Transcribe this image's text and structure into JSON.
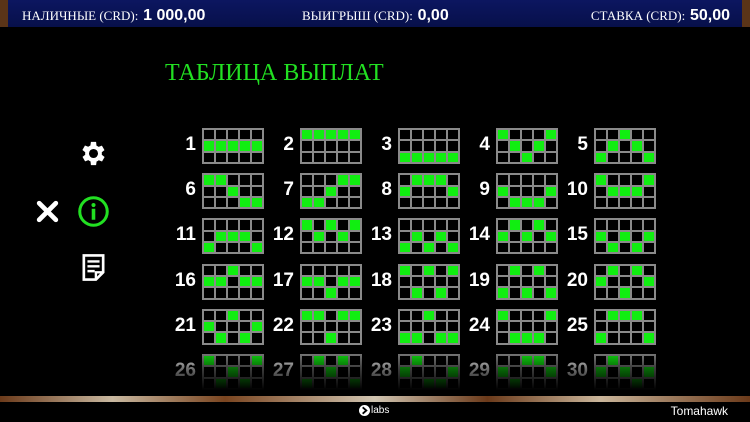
{
  "topbar": {
    "cash_label": "НАЛИЧНЫЕ (CRD):",
    "cash_value": "1 000,00",
    "win_label": "ВЫИГРЫШ (CRD):",
    "win_value": "0,00",
    "bet_label": "СТАВКА (CRD):",
    "bet_value": "50,00"
  },
  "title": "ТАБЛИЦА ВЫПЛАТ",
  "side_icons": [
    "gear-icon",
    "close-icon",
    "info-icon",
    "notes-icon"
  ],
  "colors": {
    "accent": "#22e022",
    "cell_on": "#11ee11",
    "topbar": "#0a1358"
  },
  "paylines": [
    {
      "n": "1",
      "rows": [
        1,
        1,
        1,
        1,
        1
      ]
    },
    {
      "n": "2",
      "rows": [
        0,
        0,
        0,
        0,
        0
      ]
    },
    {
      "n": "3",
      "rows": [
        2,
        2,
        2,
        2,
        2
      ]
    },
    {
      "n": "4",
      "rows": [
        0,
        1,
        2,
        1,
        0
      ]
    },
    {
      "n": "5",
      "rows": [
        2,
        1,
        0,
        1,
        2
      ]
    },
    {
      "n": "6",
      "rows": [
        0,
        0,
        1,
        2,
        2
      ]
    },
    {
      "n": "7",
      "rows": [
        2,
        2,
        1,
        0,
        0
      ]
    },
    {
      "n": "8",
      "rows": [
        1,
        0,
        0,
        0,
        1
      ]
    },
    {
      "n": "9",
      "rows": [
        1,
        2,
        2,
        2,
        1
      ]
    },
    {
      "n": "10",
      "rows": [
        0,
        1,
        1,
        1,
        0
      ]
    },
    {
      "n": "11",
      "rows": [
        2,
        1,
        1,
        1,
        2
      ]
    },
    {
      "n": "12",
      "rows": [
        0,
        1,
        0,
        1,
        0
      ]
    },
    {
      "n": "13",
      "rows": [
        2,
        1,
        2,
        1,
        2
      ]
    },
    {
      "n": "14",
      "rows": [
        1,
        0,
        1,
        0,
        1
      ]
    },
    {
      "n": "15",
      "rows": [
        1,
        2,
        1,
        2,
        1
      ]
    },
    {
      "n": "16",
      "rows": [
        1,
        1,
        0,
        1,
        1
      ]
    },
    {
      "n": "17",
      "rows": [
        1,
        1,
        2,
        1,
        1
      ]
    },
    {
      "n": "18",
      "rows": [
        0,
        2,
        0,
        2,
        0
      ]
    },
    {
      "n": "19",
      "rows": [
        2,
        0,
        2,
        0,
        2
      ]
    },
    {
      "n": "20",
      "rows": [
        1,
        0,
        2,
        0,
        1
      ]
    },
    {
      "n": "21",
      "rows": [
        1,
        2,
        0,
        2,
        1
      ]
    },
    {
      "n": "22",
      "rows": [
        0,
        0,
        2,
        0,
        0
      ]
    },
    {
      "n": "23",
      "rows": [
        2,
        2,
        0,
        2,
        2
      ]
    },
    {
      "n": "24",
      "rows": [
        0,
        2,
        2,
        2,
        0
      ]
    },
    {
      "n": "25",
      "rows": [
        2,
        0,
        0,
        0,
        2
      ]
    },
    {
      "n": "26",
      "rows": [
        0,
        2,
        1,
        2,
        0
      ]
    },
    {
      "n": "27",
      "rows": [
        2,
        0,
        1,
        0,
        2
      ]
    },
    {
      "n": "28",
      "rows": [
        1,
        0,
        2,
        2,
        1
      ]
    },
    {
      "n": "29",
      "rows": [
        1,
        2,
        0,
        0,
        1
      ]
    },
    {
      "n": "30",
      "rows": [
        1,
        0,
        1,
        2,
        1
      ]
    }
  ],
  "footer": {
    "brand": "labs",
    "game": "Tomahawk"
  }
}
